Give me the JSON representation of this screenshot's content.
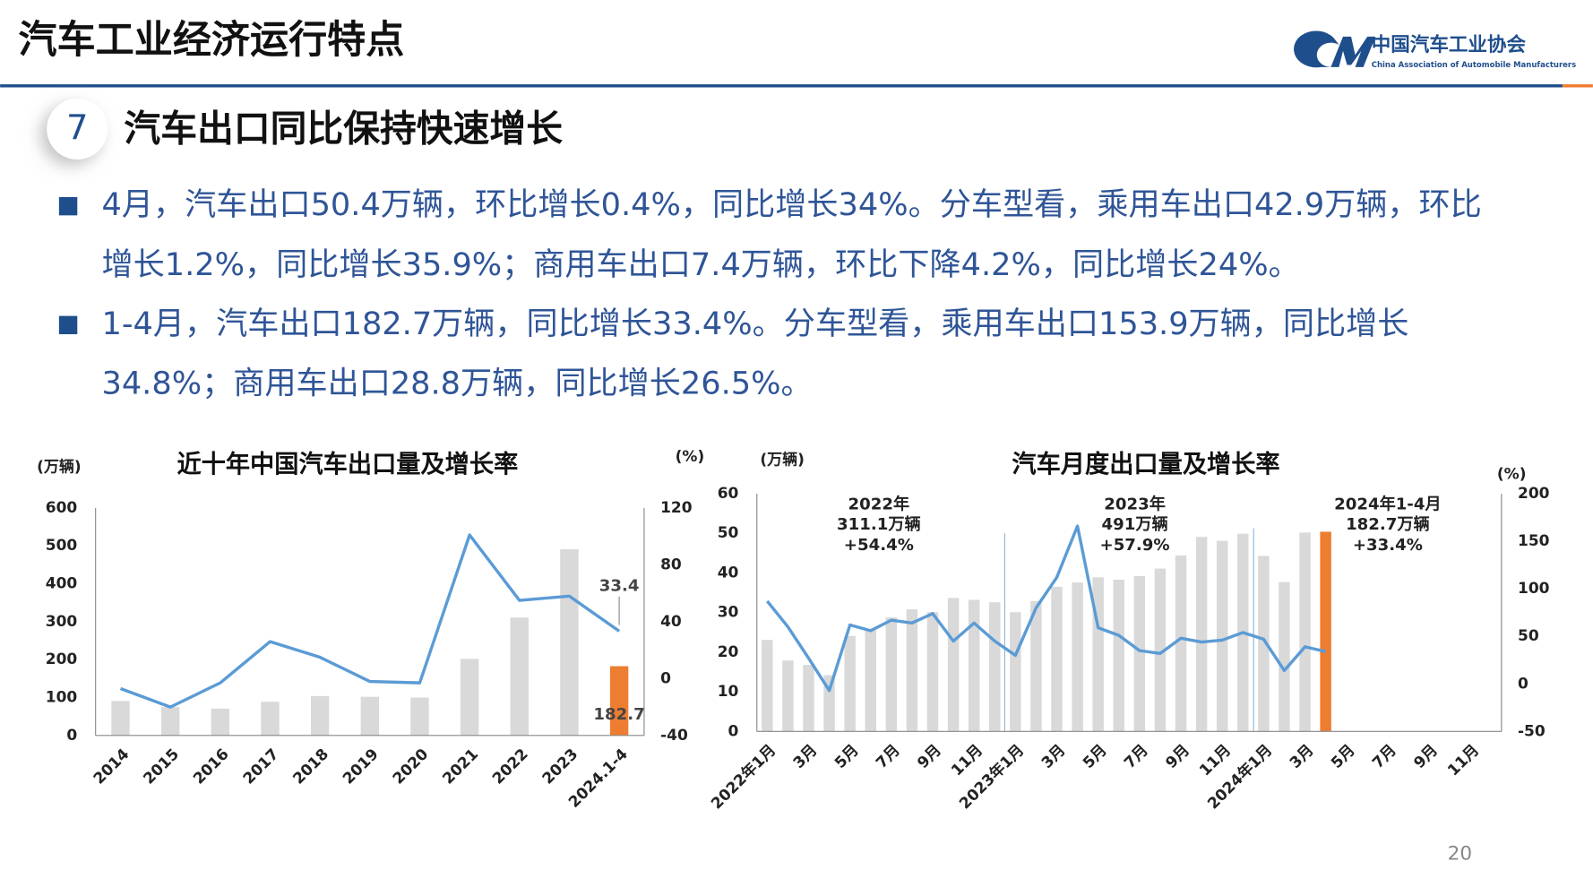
{
  "header": {
    "title": "汽车工业经济运行特点",
    "logo_cn": "中国汽车工业协会",
    "logo_en": "China Association of Automobile Manufacturers"
  },
  "section": {
    "number": "7",
    "title": "汽车出口同比保持快速增长"
  },
  "bullets": [
    [
      "4月，汽车出口50.4万辆，环比增长0.4%，同比增长34%。分车型看，乘用车出口42.9万辆，环比",
      "增长1.2%，同比增长35.9%；商用车出口7.4万辆，环比下降4.2%，同比增长24%。"
    ],
    [
      "1-4月，汽车出口182.7万辆，同比增长33.4%。分车型看，乘用车出口153.9万辆，同比增长",
      "34.8%；商用车出口28.8万辆，同比增长26.5%。"
    ]
  ],
  "page_number": "20",
  "chart_data": [
    {
      "type": "bar",
      "title": "近十年中国汽车出口量及增长率",
      "y_unit": "(万辆)",
      "y2_unit": "(%)",
      "categories": [
        "2014",
        "2015",
        "2016",
        "2017",
        "2018",
        "2019",
        "2020",
        "2021",
        "2022",
        "2023",
        "2024.1-4"
      ],
      "series": [
        {
          "type": "bar",
          "colors": [
            "#d9d9d9",
            "#d9d9d9",
            "#d9d9d9",
            "#d9d9d9",
            "#d9d9d9",
            "#d9d9d9",
            "#d9d9d9",
            "#d9d9d9",
            "#d9d9d9",
            "#d9d9d9",
            "#ed7d31"
          ],
          "values": [
            91,
            75,
            71,
            89,
            104,
            102,
            100,
            202,
            311,
            491,
            182.7
          ],
          "value_labels": [
            null,
            null,
            null,
            null,
            null,
            null,
            null,
            null,
            null,
            null,
            "182.7"
          ]
        },
        {
          "type": "line",
          "axis": "y2",
          "color": "#5b9bd5",
          "values": [
            -7,
            -20,
            -3,
            26,
            15,
            -2,
            -3,
            101,
            55,
            58,
            33.4
          ],
          "value_labels": [
            null,
            null,
            null,
            null,
            null,
            null,
            null,
            null,
            null,
            null,
            "33.4"
          ]
        }
      ],
      "ylim": [
        0,
        600
      ],
      "yticks": [
        0,
        100,
        200,
        300,
        400,
        500,
        600
      ],
      "y2lim": [
        -40,
        120
      ],
      "y2ticks": [
        -40,
        0,
        40,
        80,
        120
      ],
      "grid": false
    },
    {
      "type": "bar",
      "title": "汽车月度出口量及增长率",
      "y_unit": "(万辆)",
      "y2_unit": "(%)",
      "categories": [
        "2022年1月",
        null,
        "3月",
        null,
        "5月",
        null,
        "7月",
        null,
        "9月",
        null,
        "11月",
        null,
        "2023年1月",
        null,
        "3月",
        null,
        "5月",
        null,
        "7月",
        null,
        "9月",
        null,
        "11月",
        null,
        "2024年1月",
        null,
        "3月",
        null,
        "5月",
        null,
        "7月",
        null,
        "9月",
        null,
        "11月",
        null
      ],
      "series": [
        {
          "type": "bar",
          "colors": [
            "#d9d9d9",
            "#d9d9d9",
            "#d9d9d9",
            "#d9d9d9",
            "#d9d9d9",
            "#d9d9d9",
            "#d9d9d9",
            "#d9d9d9",
            "#d9d9d9",
            "#d9d9d9",
            "#d9d9d9",
            "#d9d9d9",
            "#d9d9d9",
            "#d9d9d9",
            "#d9d9d9",
            "#d9d9d9",
            "#d9d9d9",
            "#d9d9d9",
            "#d9d9d9",
            "#d9d9d9",
            "#d9d9d9",
            "#d9d9d9",
            "#d9d9d9",
            "#d9d9d9",
            "#d9d9d9",
            "#d9d9d9",
            "#d9d9d9",
            "#ed7d31",
            null,
            null,
            null,
            null,
            null,
            null,
            null,
            null
          ],
          "values": [
            23.1,
            17.9,
            16.8,
            14.2,
            24.1,
            25.6,
            28.8,
            30.8,
            30.1,
            33.7,
            33.2,
            32.6,
            30.1,
            32.9,
            36.5,
            37.6,
            38.9,
            38.3,
            39.2,
            41.1,
            44.4,
            49.1,
            48.1,
            49.9,
            44.3,
            37.7,
            50.2,
            50.4,
            null,
            null,
            null,
            null,
            null,
            null,
            null,
            null
          ]
        },
        {
          "type": "line",
          "axis": "y2",
          "color": "#5b9bd5",
          "values": [
            87,
            60,
            27,
            -7,
            62,
            56,
            67,
            64,
            74,
            45,
            64,
            45,
            30,
            80,
            112,
            166,
            59,
            51,
            35,
            32,
            48,
            44,
            46,
            54,
            47,
            14,
            39,
            34,
            null,
            null,
            null,
            null,
            null,
            null,
            null,
            null
          ]
        }
      ],
      "annotations": [
        [
          "2022年",
          "311.1万辆",
          "+54.4%"
        ],
        [
          "2023年",
          "491万辆",
          "+57.9%"
        ],
        [
          "2024年1-4月",
          "182.7万辆",
          "+33.4%"
        ]
      ],
      "ylim": [
        0,
        60
      ],
      "yticks": [
        0,
        10,
        20,
        30,
        40,
        50,
        60
      ],
      "y2lim": [
        -50,
        200
      ],
      "y2ticks": [
        -50,
        0,
        50,
        100,
        150,
        200
      ],
      "grid": false
    }
  ]
}
